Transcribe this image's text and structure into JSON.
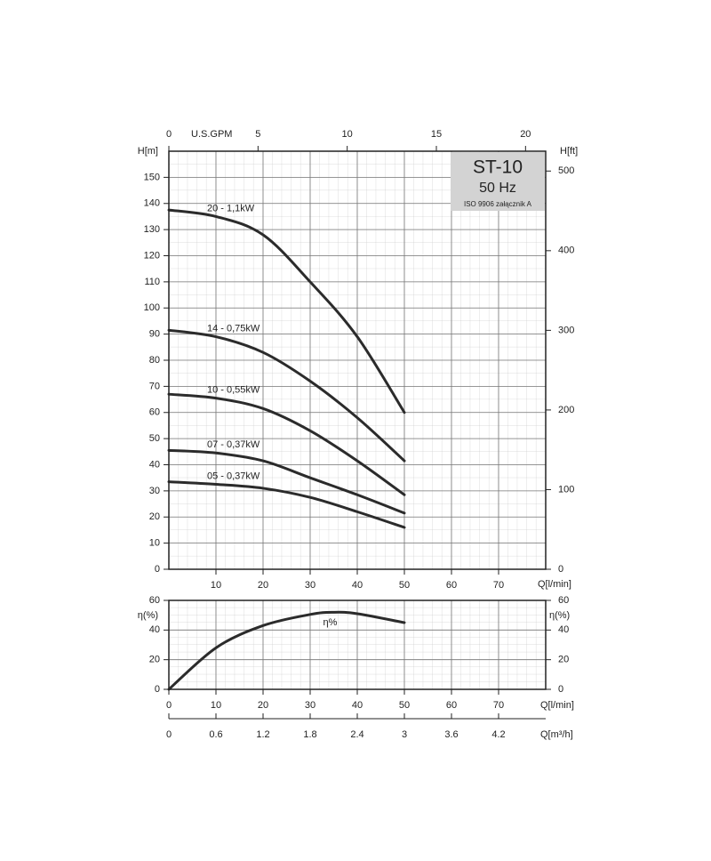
{
  "chart_data": [
    {
      "type": "line",
      "title": "ST-10",
      "subtitle": "50 Hz",
      "note": "ISO 9906 załącznik A",
      "x_label": "Q[l/min]",
      "y_label": "H[m]",
      "y2_label": "H[ft]",
      "x2_label": "U.S.GPM",
      "x": [
        0,
        10,
        20,
        30,
        40,
        50
      ],
      "xlim": [
        0,
        80
      ],
      "xticks": [
        10,
        20,
        30,
        40,
        50,
        60,
        70
      ],
      "ylim": [
        0,
        160
      ],
      "yticks": [
        0,
        10,
        20,
        30,
        40,
        50,
        60,
        70,
        80,
        90,
        100,
        110,
        120,
        130,
        140,
        150
      ],
      "y2lim": [
        0,
        524.9
      ],
      "y2ticks": [
        0,
        100,
        200,
        300,
        400,
        500
      ],
      "x2lim": [
        0,
        21.13
      ],
      "x2ticks": [
        0,
        5,
        10,
        15,
        20
      ],
      "grid": true,
      "series": [
        {
          "name": "20 - 1,1kW",
          "color": "#2b2b2b",
          "values": [
            137.5,
            135,
            128,
            110,
            89,
            60
          ]
        },
        {
          "name": "14 - 0,75kW",
          "color": "#2b2b2b",
          "values": [
            91.5,
            89,
            83,
            72,
            58,
            41.5
          ]
        },
        {
          "name": "10 - 0,55kW",
          "color": "#2b2b2b",
          "values": [
            67,
            65.5,
            61.5,
            53,
            41.5,
            28.5
          ]
        },
        {
          "name": "07 - 0,37kW",
          "color": "#2b2b2b",
          "values": [
            45.5,
            44.5,
            41.5,
            35,
            28.5,
            21.5
          ]
        },
        {
          "name": "05 - 0,37kW",
          "color": "#2b2b2b",
          "values": [
            33.5,
            32.5,
            31,
            27.5,
            22,
            16
          ]
        }
      ]
    },
    {
      "type": "line",
      "x_label": "Q[l/min]",
      "y_label": "η(%)",
      "y2_label": "η(%)",
      "x2_label": "Q[m³/h]",
      "x": [
        0,
        10,
        20,
        30,
        35,
        40,
        50
      ],
      "xlim": [
        0,
        80
      ],
      "xticks": [
        0,
        10,
        20,
        30,
        40,
        50,
        60,
        70
      ],
      "ylim": [
        0,
        60
      ],
      "yticks": [
        0,
        20,
        40,
        60
      ],
      "y2lim": [
        0,
        60
      ],
      "y2ticks": [
        0,
        20,
        40,
        60
      ],
      "x2lim": [
        0,
        4.8
      ],
      "x2ticks": [
        0,
        0.6,
        1.2,
        1.8,
        2.4,
        3,
        3.6,
        4.2
      ],
      "grid": true,
      "series": [
        {
          "name": "η%",
          "color": "#2b2b2b",
          "values": [
            0,
            28,
            43,
            50.5,
            52,
            51,
            45
          ]
        }
      ]
    }
  ]
}
